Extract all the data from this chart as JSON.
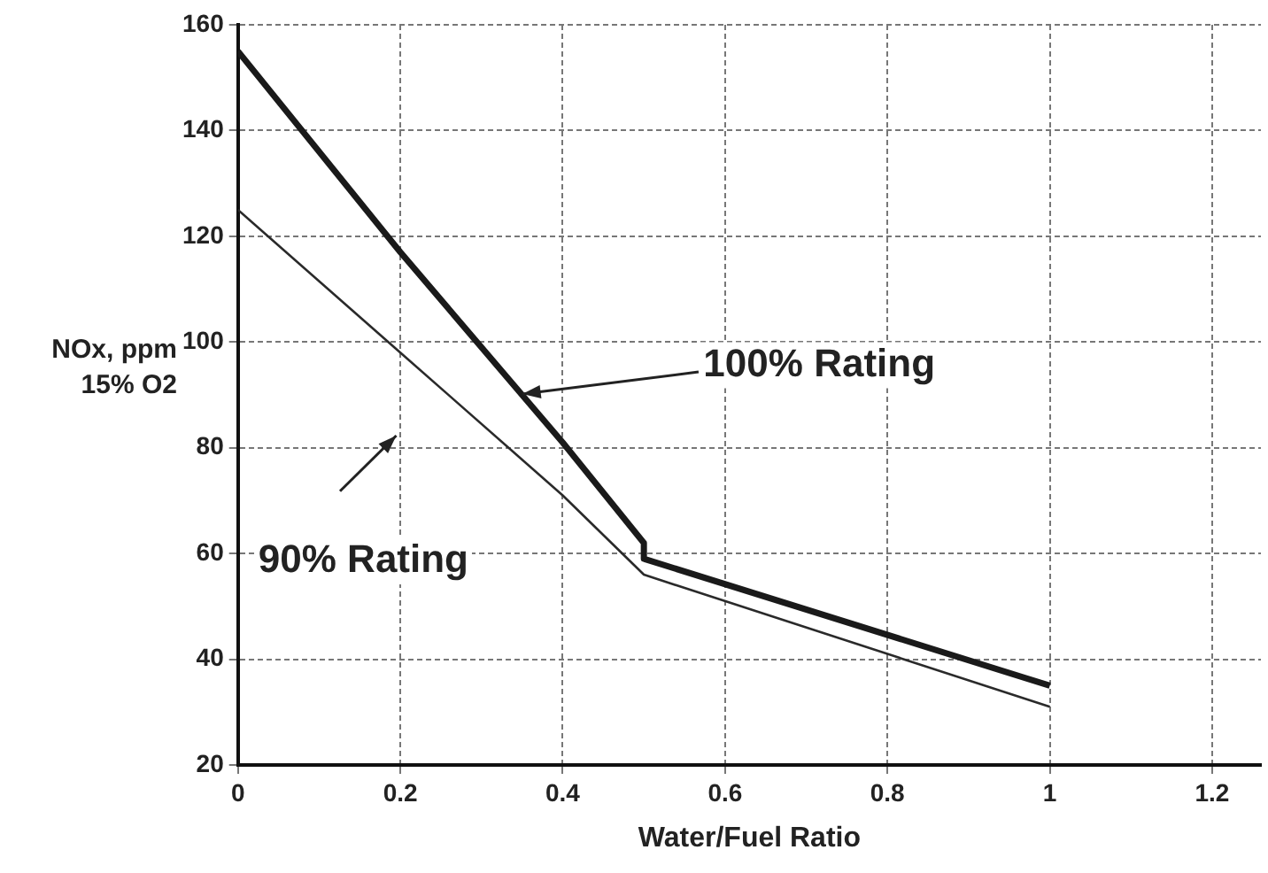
{
  "chart_data": {
    "type": "line",
    "xlabel": "Water/Fuel Ratio",
    "ylabel": "NOx, ppm\n15% O2",
    "xlim": [
      0,
      1.26
    ],
    "xticks": [
      0,
      0.2,
      0.4,
      0.6,
      0.8,
      1,
      1.2
    ],
    "ylim": [
      20,
      160
    ],
    "yticks": [
      20,
      40,
      60,
      80,
      100,
      120,
      140,
      160
    ],
    "grid": true,
    "line_style": "solid",
    "marker": "none",
    "legend": false,
    "series": [
      {
        "x": [
          0,
          0.2,
          0.4,
          0.5,
          0.5,
          1
        ],
        "values": [
          155,
          117,
          81,
          62,
          59,
          35
        ],
        "color": "#1a1a1a"
      },
      {
        "x": [
          0,
          0.2,
          0.4,
          0.5,
          1
        ],
        "values": [
          125,
          98,
          71,
          56,
          31
        ],
        "color": "#2a2a2a"
      }
    ],
    "annotations": [
      {
        "text": "100% Rating",
        "x": 0.35,
        "y": 90
      },
      "90% Rating"
    ]
  }
}
